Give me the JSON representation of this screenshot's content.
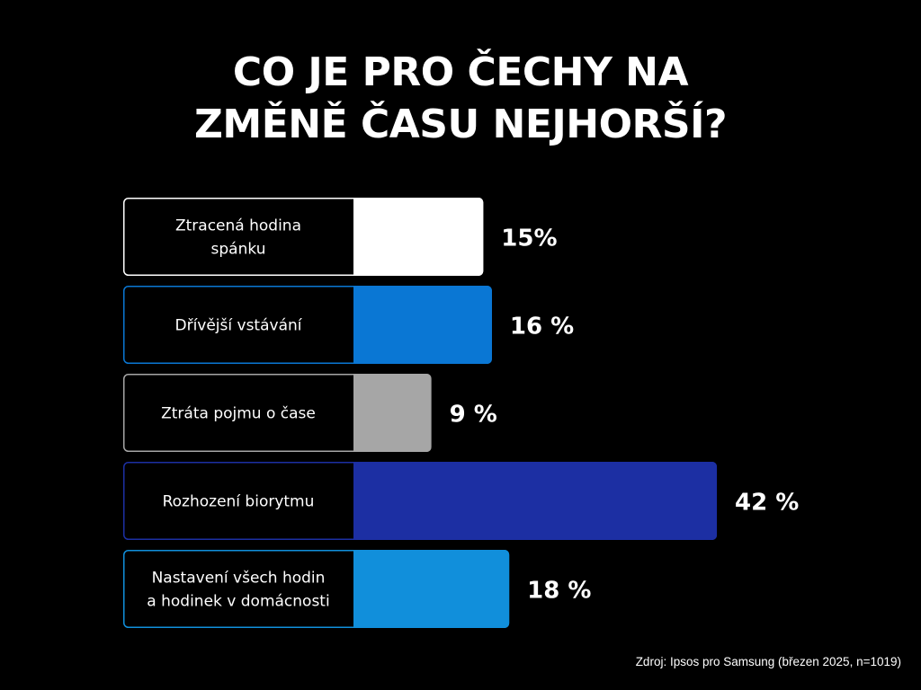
{
  "title_lines": [
    "CO JE PRO ČECHY NA",
    "ZMĚNĚ ČASU NEJHORŠÍ?"
  ],
  "source": "Zdroj: Ipsos pro Samsung (březen 2025, n=1019)",
  "chart_data": {
    "type": "bar",
    "orientation": "horizontal",
    "title": "CO JE PRO ČECHY NA ZMĚNĚ ČASU NEJHORŠÍ?",
    "unit": "%",
    "legend": "none",
    "grid": false,
    "categories": [
      [
        "Ztracená hodina",
        "spánku"
      ],
      [
        "Dřívější vstávání"
      ],
      [
        "Ztráta pojmu o čase"
      ],
      [
        "Rozhození biorytmu"
      ],
      [
        "Nastavení všech hodin",
        "a hodinek v domácnosti"
      ]
    ],
    "values": [
      15,
      16,
      9,
      42,
      18
    ],
    "value_labels": [
      "15%",
      "16 %",
      "9 %",
      "42 %",
      "18 %"
    ],
    "colors": [
      "#ffffff",
      "#0a77d4",
      "#a6a6a6",
      "#1c2fa3",
      "#118fdb"
    ],
    "border_colors": [
      "#ffffff",
      "#0a77d4",
      "#a6a6a6",
      "#1c2fa3",
      "#118fdb"
    ]
  }
}
